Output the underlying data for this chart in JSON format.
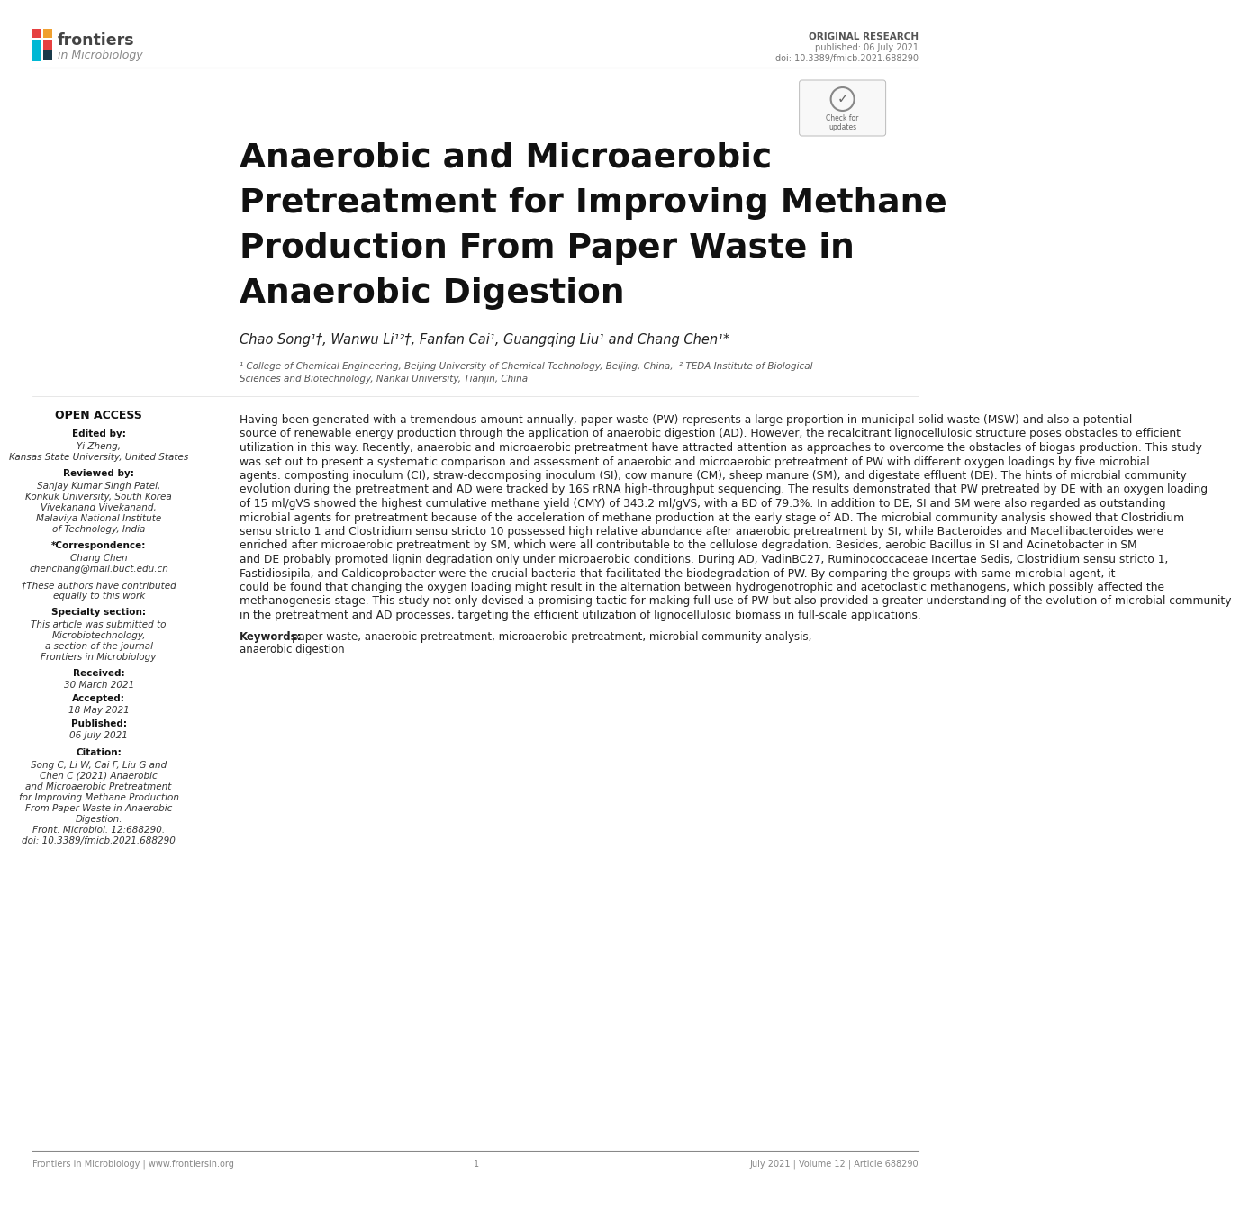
{
  "page_bg": "#ffffff",
  "header_right_line1": "ORIGINAL RESEARCH",
  "header_right_line2": "published: 06 July 2021",
  "header_right_line3": "doi: 10.3389/fmicb.2021.688290",
  "title_line1": "Anaerobic and Microaerobic",
  "title_line2": "Pretreatment for Improving Methane",
  "title_line3": "Production From Paper Waste in",
  "title_line4": "Anaerobic Digestion",
  "authors": "Chao Song¹†, Wanwu Li¹²†, Fanfan Cai¹, Guangqing Liu¹ and Chang Chen¹*",
  "affil1": "¹ College of Chemical Engineering, Beijing University of Chemical Technology, Beijing, China,  ² TEDA Institute of Biological",
  "affil2": "Sciences and Biotechnology, Nankai University, Tianjin, China",
  "sb_open_access": "OPEN ACCESS",
  "sb_edited_label": "Edited by:",
  "sb_edited_lines": [
    "Yi Zheng,",
    "Kansas State University, United States"
  ],
  "sb_reviewed_label": "Reviewed by:",
  "sb_reviewed_lines": [
    "Sanjay Kumar Singh Patel,",
    "Konkuk University, South Korea",
    "Vivekanand Vivekanand,",
    "Malaviya National Institute",
    "of Technology, India"
  ],
  "sb_corr_label": "*Correspondence:",
  "sb_corr_lines": [
    "Chang Chen",
    "chenchang@mail.buct.edu.cn"
  ],
  "sb_dagger_lines": [
    "†These authors have contributed",
    "equally to this work"
  ],
  "sb_specialty_label": "Specialty section:",
  "sb_specialty_lines": [
    "This article was submitted to",
    "Microbiotechnology,",
    "a section of the journal",
    "Frontiers in Microbiology"
  ],
  "sb_received_label": "Received:",
  "sb_received": "30 March 2021",
  "sb_accepted_label": "Accepted:",
  "sb_accepted": "18 May 2021",
  "sb_published_label": "Published:",
  "sb_published": "06 July 2021",
  "sb_citation_label": "Citation:",
  "sb_citation_lines": [
    "Song C, Li W, Cai F, Liu G and",
    "Chen C (2021) Anaerobic",
    "and Microaerobic Pretreatment",
    "for Improving Methane Production",
    "From Paper Waste in Anaerobic",
    "Digestion.",
    "Front. Microbiol. 12:688290.",
    "doi: 10.3389/fmicb.2021.688290"
  ],
  "abstract_lines": [
    "Having been generated with a tremendous amount annually, paper waste (PW) represents a large proportion in municipal solid waste (MSW) and also a potential",
    "source of renewable energy production through the application of anaerobic digestion (AD). However, the recalcitrant lignocellulosic structure poses obstacles to efficient",
    "utilization in this way. Recently, anaerobic and microaerobic pretreatment have attracted attention as approaches to overcome the obstacles of biogas production. This study",
    "was set out to present a systematic comparison and assessment of anaerobic and microaerobic pretreatment of PW with different oxygen loadings by five microbial",
    "agents: composting inoculum (CI), straw-decomposing inoculum (SI), cow manure (CM), sheep manure (SM), and digestate effluent (DE). The hints of microbial community",
    "evolution during the pretreatment and AD were tracked by 16S rRNA high-throughput sequencing. The results demonstrated that PW pretreated by DE with an oxygen loading",
    "of 15 ml/gVS showed the highest cumulative methane yield (CMY) of 343.2 ml/gVS, with a BD of 79.3%. In addition to DE, SI and SM were also regarded as outstanding",
    "microbial agents for pretreatment because of the acceleration of methane production at the early stage of AD. The microbial community analysis showed that Clostridium",
    "sensu stricto 1 and Clostridium sensu stricto 10 possessed high relative abundance after anaerobic pretreatment by SI, while Bacteroides and Macellibacteroides were",
    "enriched after microaerobic pretreatment by SM, which were all contributable to the cellulose degradation. Besides, aerobic Bacillus in SI and Acinetobacter in SM",
    "and DE probably promoted lignin degradation only under microaerobic conditions. During AD, VadinBC27, Ruminococcaceae Incertae Sedis, Clostridium sensu stricto 1,",
    "Fastidiosipila, and Caldicoprobacter were the crucial bacteria that facilitated the biodegradation of PW. By comparing the groups with same microbial agent, it",
    "could be found that changing the oxygen loading might result in the alternation between hydrogenotrophic and acetoclastic methanogens, which possibly affected the",
    "methanogenesis stage. This study not only devised a promising tactic for making full use of PW but also provided a greater understanding of the evolution of microbial community",
    "in the pretreatment and AD processes, targeting the efficient utilization of lignocellulosic biomass in full-scale applications."
  ],
  "kw_label": "Keywords:",
  "kw_line1": "paper waste, anaerobic pretreatment, microaerobic pretreatment, microbial community analysis,",
  "kw_line2": "anaerobic digestion",
  "footer_left": "Frontiers in Microbiology | www.frontiersin.org",
  "footer_center": "1",
  "footer_right": "July 2021 | Volume 12 | Article 688290"
}
